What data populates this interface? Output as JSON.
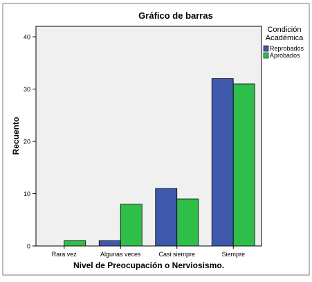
{
  "colors": {
    "reprobados": "#3e58ac",
    "aprobados": "#2fbe4a",
    "plot_background": "#f0f0f0",
    "border": "#000000"
  },
  "chart_data": {
    "type": "bar",
    "title": "Gráfico de barras",
    "xlabel": "Nivel de Preocupación o Nerviosismo.",
    "ylabel": "Recuento",
    "categories": [
      "Rara vez",
      "Algunas veces",
      "Casi siempre",
      "Siempre"
    ],
    "ylim": [
      0,
      42
    ],
    "yticks": [
      0,
      10,
      20,
      30,
      40
    ],
    "grid": false,
    "legend_title": "Condición Académica",
    "legend_title_lines": [
      "Condición",
      "Académica"
    ],
    "legend_position": "top-right",
    "series": [
      {
        "name": "Reprobados",
        "values": [
          0,
          1,
          11,
          32
        ]
      },
      {
        "name": "Aprobados",
        "values": [
          1,
          8,
          9,
          31
        ]
      }
    ]
  }
}
